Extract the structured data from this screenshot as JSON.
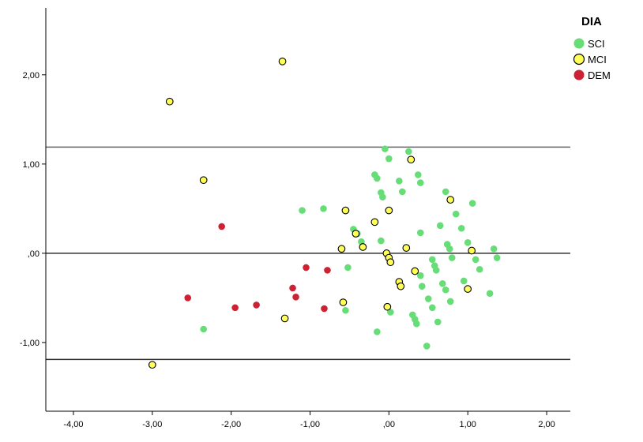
{
  "chart_data": {
    "type": "scatter",
    "title": "",
    "xlabel": "",
    "ylabel": "",
    "xlim": [
      -4.35,
      2.3
    ],
    "ylim": [
      -1.77,
      2.75
    ],
    "x_ticks": [
      -4,
      -3,
      -2,
      -1,
      0,
      1,
      2
    ],
    "x_tick_labels": [
      "-4,00",
      "-3,00",
      "-2,00",
      "-1,00",
      ",00",
      "1,00",
      "2,00"
    ],
    "y_ticks": [
      -1,
      0,
      1,
      2
    ],
    "y_tick_labels": [
      "-1,00",
      ",00",
      "1,00",
      "2,00"
    ],
    "grid": false,
    "reference_lines": [
      {
        "y": 1.19,
        "color": "#666666"
      },
      {
        "y": 0.0,
        "color": "#333333"
      },
      {
        "y": -1.19,
        "color": "#333333"
      }
    ],
    "legend": {
      "title": "DIA",
      "position": "top-right"
    },
    "series": [
      {
        "name": "SCI",
        "color": "#66dd77",
        "stroke": "none",
        "points": [
          [
            -2.35,
            -0.85
          ],
          [
            -1.1,
            0.48
          ],
          [
            -0.83,
            0.5
          ],
          [
            -0.52,
            -0.16
          ],
          [
            -0.55,
            -0.64
          ],
          [
            -0.45,
            0.27
          ],
          [
            -0.4,
            0.22
          ],
          [
            -0.35,
            0.13
          ],
          [
            -0.18,
            0.88
          ],
          [
            -0.15,
            0.84
          ],
          [
            -0.15,
            -0.88
          ],
          [
            -0.1,
            0.68
          ],
          [
            -0.08,
            0.63
          ],
          [
            -0.1,
            0.14
          ],
          [
            -0.05,
            1.17
          ],
          [
            0.0,
            1.06
          ],
          [
            0.02,
            -0.66
          ],
          [
            0.13,
            0.81
          ],
          [
            0.17,
            0.69
          ],
          [
            0.25,
            1.14
          ],
          [
            0.3,
            -0.69
          ],
          [
            0.33,
            -0.74
          ],
          [
            0.35,
            -0.79
          ],
          [
            0.37,
            0.88
          ],
          [
            0.4,
            0.79
          ],
          [
            0.4,
            0.23
          ],
          [
            0.4,
            -0.25
          ],
          [
            0.42,
            -0.37
          ],
          [
            0.48,
            -1.04
          ],
          [
            0.5,
            -0.51
          ],
          [
            0.55,
            -0.61
          ],
          [
            0.55,
            -0.07
          ],
          [
            0.58,
            -0.14
          ],
          [
            0.6,
            -0.19
          ],
          [
            0.62,
            -0.77
          ],
          [
            0.65,
            0.31
          ],
          [
            0.68,
            -0.34
          ],
          [
            0.72,
            -0.41
          ],
          [
            0.72,
            0.69
          ],
          [
            0.74,
            0.1
          ],
          [
            0.77,
            0.05
          ],
          [
            0.78,
            -0.54
          ],
          [
            0.8,
            -0.05
          ],
          [
            0.85,
            0.44
          ],
          [
            0.92,
            0.28
          ],
          [
            0.95,
            -0.31
          ],
          [
            1.0,
            0.12
          ],
          [
            1.06,
            0.56
          ],
          [
            1.1,
            -0.07
          ],
          [
            1.15,
            -0.18
          ],
          [
            1.28,
            -0.45
          ],
          [
            1.33,
            0.05
          ],
          [
            1.37,
            -0.05
          ]
        ]
      },
      {
        "name": "MCI",
        "color": "#ffff55",
        "stroke": "#000000",
        "points": [
          [
            -2.78,
            1.7
          ],
          [
            -1.35,
            2.15
          ],
          [
            -2.35,
            0.82
          ],
          [
            -3.0,
            -1.25
          ],
          [
            -1.32,
            -0.73
          ],
          [
            -0.55,
            0.48
          ],
          [
            -0.6,
            0.05
          ],
          [
            -0.58,
            -0.55
          ],
          [
            -0.42,
            0.22
          ],
          [
            -0.33,
            0.07
          ],
          [
            -0.18,
            0.35
          ],
          [
            -0.03,
            0.0
          ],
          [
            0.0,
            -0.05
          ],
          [
            0.02,
            -0.1
          ],
          [
            0.0,
            0.48
          ],
          [
            -0.02,
            -0.6
          ],
          [
            0.13,
            -0.32
          ],
          [
            0.15,
            -0.37
          ],
          [
            0.22,
            0.06
          ],
          [
            0.28,
            1.05
          ],
          [
            0.33,
            -0.2
          ],
          [
            0.78,
            0.6
          ],
          [
            1.05,
            0.03
          ],
          [
            1.0,
            -0.4
          ]
        ]
      },
      {
        "name": "DEM",
        "color": "#cc2233",
        "stroke": "none",
        "points": [
          [
            -2.12,
            0.3
          ],
          [
            -2.55,
            -0.5
          ],
          [
            -1.95,
            -0.61
          ],
          [
            -1.68,
            -0.58
          ],
          [
            -1.22,
            -0.39
          ],
          [
            -1.18,
            -0.49
          ],
          [
            -1.05,
            -0.16
          ],
          [
            -0.82,
            -0.62
          ],
          [
            -0.78,
            -0.19
          ]
        ]
      }
    ]
  }
}
